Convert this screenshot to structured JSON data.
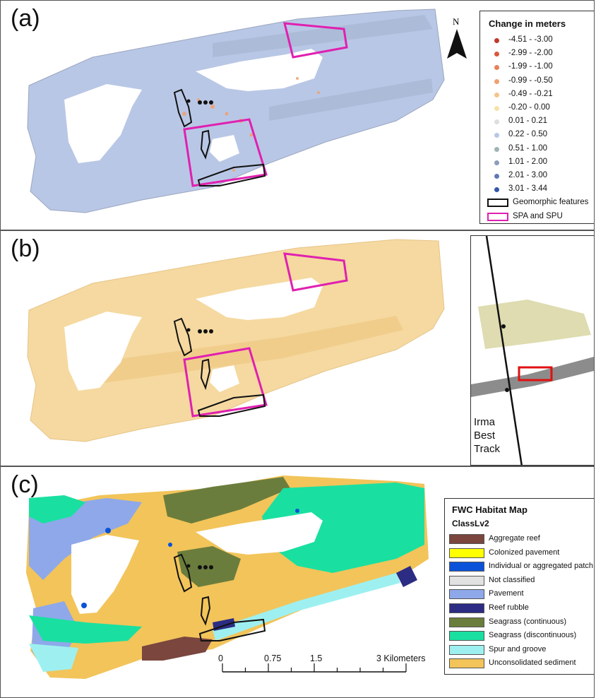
{
  "panels": {
    "a": {
      "label": "(a)"
    },
    "b": {
      "label": "(b)"
    },
    "c": {
      "label": "(c)"
    }
  },
  "north_arrow": {
    "letter": "N"
  },
  "change_legend": {
    "title": "Change in meters",
    "classes": [
      {
        "label": "-4.51 - -3.00",
        "color": "#c0392b"
      },
      {
        "label": "-2.99 - -2.00",
        "color": "#d9583a"
      },
      {
        "label": "-1.99 - -1.00",
        "color": "#e8805a"
      },
      {
        "label": "-0.99 - -0.50",
        "color": "#f0a070"
      },
      {
        "label": "-0.49 - -0.21",
        "color": "#f5c48a"
      },
      {
        "label": "-0.20 - 0.00",
        "color": "#f6e2a8"
      },
      {
        "label": "0.01 - 0.21",
        "color": "#dedede"
      },
      {
        "label": "0.22 - 0.50",
        "color": "#b9c7e6"
      },
      {
        "label": "0.51 - 1.00",
        "color": "#9fb3b3"
      },
      {
        "label": "1.01 - 2.00",
        "color": "#8b9dbd"
      },
      {
        "label": "2.01 - 3.00",
        "color": "#5f78b5"
      },
      {
        "label": "3.01 - 3.44",
        "color": "#3358a8"
      }
    ],
    "outline_items": [
      {
        "label": "Geomorphic features",
        "color": "#111111"
      },
      {
        "label": "SPA and SPU",
        "color": "#e020b0"
      }
    ]
  },
  "inset": {
    "label_lines": [
      "Irma",
      "Best",
      "Track"
    ],
    "highlight_color": "#e01010"
  },
  "habitat_legend": {
    "title": "FWC Habitat Map",
    "subtitle": "ClassLv2",
    "classes": [
      {
        "label": "Aggregate reef",
        "color": "#7a463e"
      },
      {
        "label": "Colonized pavement",
        "color": "#ffff00"
      },
      {
        "label": "Individual or aggregated patch reef",
        "color": "#0a52d8"
      },
      {
        "label": "Not classified",
        "color": "#e2e2e2"
      },
      {
        "label": "Pavement",
        "color": "#8ea8ea"
      },
      {
        "label": "Reef rubble",
        "color": "#2c2c84"
      },
      {
        "label": "Seagrass (continuous)",
        "color": "#6b7d3c"
      },
      {
        "label": "Seagrass (discontinuous)",
        "color": "#19e0a0"
      },
      {
        "label": "Spur and groove",
        "color": "#9ef0f0"
      },
      {
        "label": "Unconsolidated sediment",
        "color": "#f2c45a"
      }
    ]
  },
  "scale_bar": {
    "ticks": [
      "0",
      "0.75",
      "1.5",
      "3 Kilometers"
    ],
    "values_km": [
      0,
      0.75,
      1.5,
      3
    ]
  },
  "colors": {
    "geomorphic_outline": "#111111",
    "spa_spu_outline": "#e020b0",
    "panel_a_fill": "#b9c7e6",
    "panel_b_fill": "#f5d9a0"
  }
}
